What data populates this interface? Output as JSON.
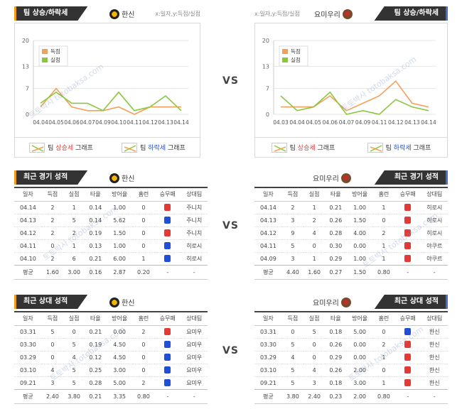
{
  "vs_label": "VS",
  "watermark": "토토박사 totobaksa.com",
  "left": {
    "team": "한신",
    "trend": {
      "title": "팀 상승/하락세",
      "axis_hint": "x:일자,y:득점/실점",
      "legend_up": [
        "팀 ",
        "상승세",
        " 그래프"
      ],
      "legend_down": [
        "팀 ",
        "하락세",
        " 그래프"
      ]
    },
    "recent": {
      "title": "최근 경기 성적",
      "headers": [
        "일자",
        "득점",
        "실점",
        "타율",
        "방어율",
        "홈런",
        "승무패",
        "상대팀"
      ],
      "rows": [
        [
          "04.14",
          "2",
          "1",
          "0.14",
          "1.00",
          "0",
          "loss",
          "주니치"
        ],
        [
          "04.13",
          "2",
          "5",
          "0.14",
          "5.62",
          "0",
          "win",
          "주니치"
        ],
        [
          "04.12",
          "2",
          "2",
          "0.19",
          "1.50",
          "0",
          "loss",
          "주니치"
        ],
        [
          "04.11",
          "0",
          "1",
          "0.13",
          "1.00",
          "0",
          "win",
          "히로시"
        ],
        [
          "04.10",
          "2",
          "6",
          "0.21",
          "6.00",
          "1",
          "win",
          "히로시"
        ]
      ],
      "avg": [
        "평균",
        "1.60",
        "3.00",
        "0.16",
        "2.87",
        "0.20",
        "-",
        "-"
      ]
    },
    "h2h": {
      "title": "최근 상대 성적",
      "headers": [
        "일자",
        "득점",
        "실점",
        "타율",
        "방어율",
        "홈런",
        "승무패",
        "상대팀"
      ],
      "rows": [
        [
          "03.31",
          "5",
          "0",
          "0.21",
          "0.00",
          "2",
          "loss",
          "요미우"
        ],
        [
          "03.30",
          "0",
          "5",
          "0.19",
          "4.50",
          "0",
          "win",
          "요미우"
        ],
        [
          "03.29",
          "0",
          "4",
          "0.12",
          "4.50",
          "0",
          "win",
          "요미우"
        ],
        [
          "03.10",
          "4",
          "5",
          "0.25",
          "3.00",
          "0",
          "win",
          "요미우"
        ],
        [
          "09.21",
          "3",
          "5",
          "0.28",
          "5.00",
          "2",
          "win",
          "요미우"
        ]
      ],
      "avg": [
        "평균",
        "2.40",
        "3.80",
        "0.21",
        "3.35",
        "0.80",
        "-",
        "-"
      ]
    }
  },
  "right": {
    "team": "요미우리",
    "trend": {
      "title": "팀 상승/하락세",
      "axis_hint": "x:일자,y:득점/실점",
      "legend_up": [
        "팀 ",
        "상승세",
        " 그래프"
      ],
      "legend_down": [
        "팀 ",
        "하락세",
        " 그래프"
      ]
    },
    "recent": {
      "title": "최근 경기 성적",
      "headers": [
        "일자",
        "득점",
        "실점",
        "타율",
        "방어율",
        "홈런",
        "승무패",
        "상대팀"
      ],
      "rows": [
        [
          "04.14",
          "2",
          "1",
          "0.21",
          "1.00",
          "1",
          "loss",
          "히로시"
        ],
        [
          "04.13",
          "3",
          "2",
          "0.26",
          "1.50",
          "0",
          "loss",
          "히로시"
        ],
        [
          "04.12",
          "9",
          "4",
          "0.28",
          "4.00",
          "2",
          "loss",
          "히로시"
        ],
        [
          "04.11",
          "5",
          "0",
          "0.30",
          "0.00",
          "1",
          "loss",
          "야쿠르"
        ],
        [
          "04.09",
          "3",
          "1",
          "0.29",
          "1.00",
          "1",
          "loss",
          "야쿠르"
        ]
      ],
      "avg": [
        "평균",
        "4.40",
        "1.60",
        "0.27",
        "1.50",
        "0.80",
        "-",
        "-"
      ]
    },
    "h2h": {
      "title": "최근 상대 성적",
      "headers": [
        "일자",
        "득점",
        "실점",
        "타율",
        "방어율",
        "홈런",
        "승무패",
        "상대팀"
      ],
      "rows": [
        [
          "03.31",
          "0",
          "5",
          "0.18",
          "5.00",
          "0",
          "win",
          "한신"
        ],
        [
          "03.30",
          "5",
          "0",
          "0.26",
          "0.00",
          "2",
          "loss",
          "한신"
        ],
        [
          "03.29",
          "4",
          "0",
          "0.29",
          "0.00",
          "1",
          "loss",
          "한신"
        ],
        [
          "03.10",
          "5",
          "4",
          "0.26",
          "2.00",
          "0",
          "loss",
          "한신"
        ],
        [
          "09.21",
          "5",
          "3",
          "0.18",
          "3.00",
          "1",
          "loss",
          "한신"
        ]
      ],
      "avg": [
        "평균",
        "3.80",
        "2.40",
        "0.23",
        "2.00",
        "0.80",
        "-",
        "-"
      ]
    }
  },
  "chart_data": [
    {
      "type": "line",
      "x": [
        "04.04",
        "04.05",
        "04.06",
        "04.07",
        "04.09",
        "04.10",
        "04.11",
        "04.12",
        "04.13",
        "04.14"
      ],
      "ylim": [
        0,
        20
      ],
      "yticks": [
        0,
        7,
        13,
        20
      ],
      "series": [
        {
          "name": "득점",
          "color": "#f5a05a",
          "values": [
            2,
            7,
            2,
            1,
            1,
            2,
            0,
            2,
            2,
            2
          ]
        },
        {
          "name": "실점",
          "color": "#8cc63f",
          "values": [
            3,
            6,
            3,
            3,
            1,
            6,
            1,
            2,
            5,
            1
          ]
        }
      ],
      "legend": "top-left",
      "grid": true
    },
    {
      "type": "line",
      "x": [
        "04.03",
        "04.04",
        "04.05",
        "04.06",
        "04.07",
        "04.09",
        "04.11",
        "04.12",
        "04.13",
        "04.14"
      ],
      "ylim": [
        0,
        20
      ],
      "yticks": [
        0,
        7,
        13,
        20
      ],
      "series": [
        {
          "name": "득점",
          "color": "#f5a05a",
          "values": [
            2,
            2,
            2,
            5,
            1,
            3,
            5,
            9,
            3,
            2
          ]
        },
        {
          "name": "실점",
          "color": "#8cc63f",
          "values": [
            5,
            1,
            2,
            6,
            0,
            1,
            0,
            4,
            2,
            1
          ]
        }
      ],
      "legend": "top-left",
      "grid": true
    }
  ]
}
